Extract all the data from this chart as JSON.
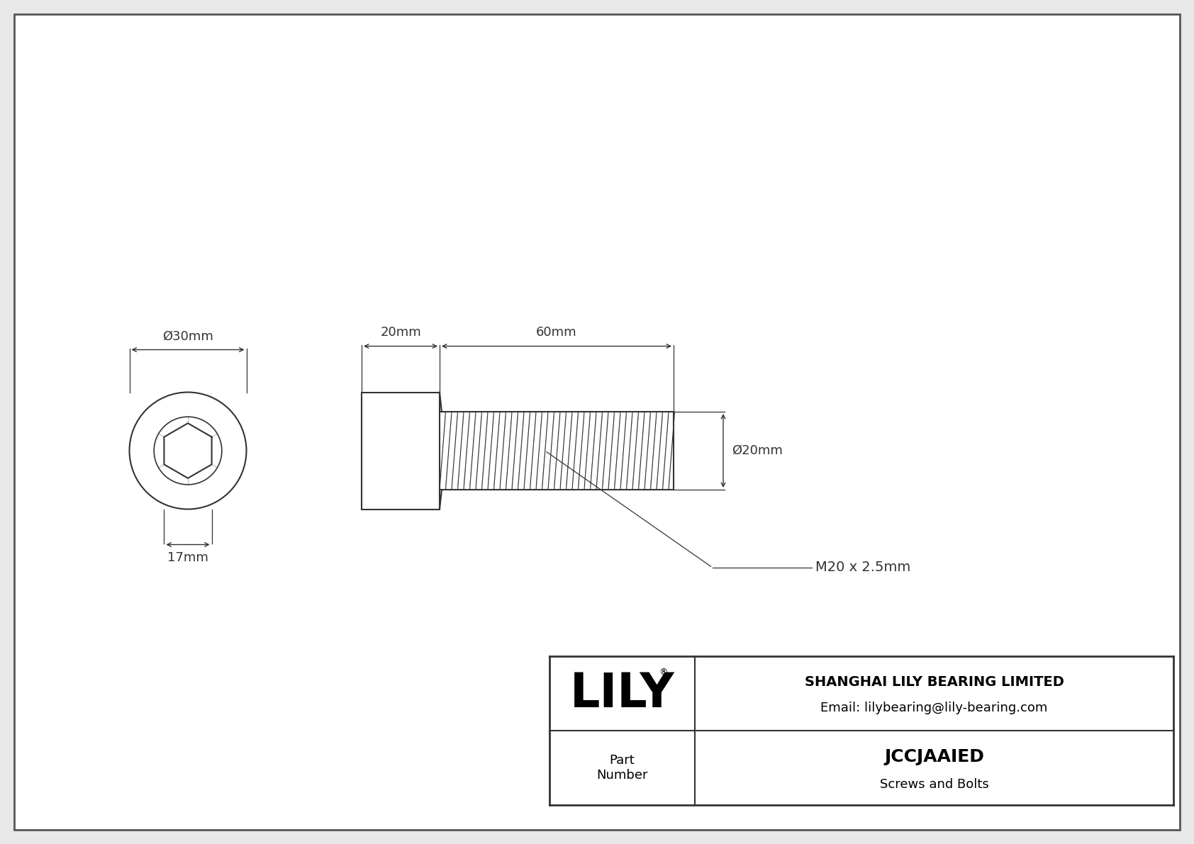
{
  "bg_color": "#e8e8e8",
  "inner_bg": "#ffffff",
  "border_color": "#444444",
  "line_color": "#333333",
  "title": "JCCJAAIED",
  "subtitle": "Screws and Bolts",
  "company": "SHANGHAI LILY BEARING LIMITED",
  "email": "Email: lilybearing@lily-bearing.com",
  "part_label": "Part\nNumber",
  "logo": "LILY",
  "logo_tm": "®",
  "dim_head_d": "Ø30mm",
  "dim_hex": "17mm",
  "dim_head_len": "20mm",
  "dim_shaft_len": "60mm",
  "dim_shaft_d": "Ø20mm",
  "dim_thread": "M20 x 2.5mm",
  "font_size_dim": 13,
  "font_size_logo": 48,
  "font_size_company": 14,
  "font_size_table": 12,
  "font_size_partnum": 18
}
